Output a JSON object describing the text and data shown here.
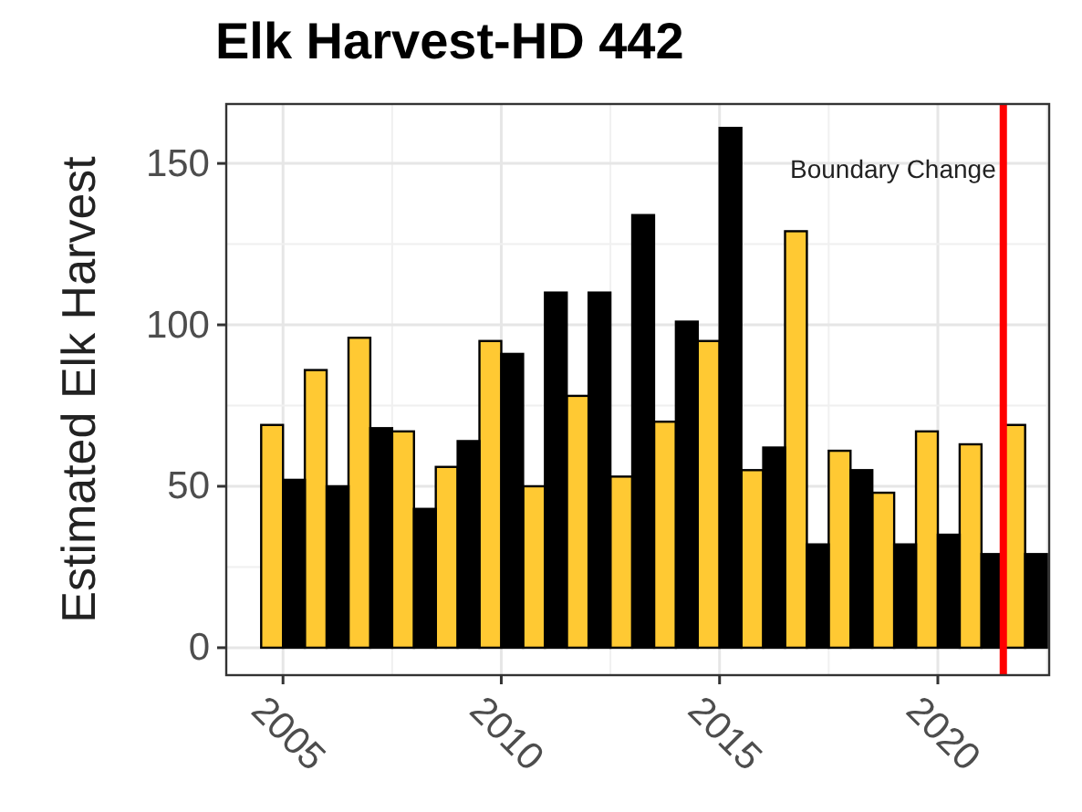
{
  "chart_data": {
    "type": "bar",
    "title": "Elk Harvest-HD 442",
    "ylabel": "Estimated Elk Harvest",
    "x": [
      2005,
      2006,
      2007,
      2008,
      2009,
      2010,
      2011,
      2012,
      2013,
      2014,
      2015,
      2016,
      2017,
      2018,
      2019,
      2020,
      2021,
      2022
    ],
    "series": [
      {
        "color": "#ffc933",
        "values": [
          69,
          86,
          96,
          67,
          56,
          95,
          50,
          78,
          53,
          70,
          95,
          55,
          129,
          61,
          48,
          67,
          63,
          69
        ]
      },
      {
        "color": "#000000",
        "values": [
          52,
          50,
          68,
          43,
          64,
          91,
          110,
          110,
          134,
          101,
          161,
          62,
          32,
          55,
          32,
          35,
          29,
          29
        ]
      }
    ],
    "xlim": [
      2003.7,
      2022.55
    ],
    "xticks": [
      2005,
      2010,
      2015,
      2020
    ],
    "ylim": [
      -8.5,
      168.4
    ],
    "yticks": [
      0,
      50,
      100,
      150
    ],
    "grid": true,
    "ref_lines": [
      {
        "axis": "x",
        "value": 2021.5,
        "label": "Boundary Change",
        "color": "#ff0000"
      }
    ]
  }
}
